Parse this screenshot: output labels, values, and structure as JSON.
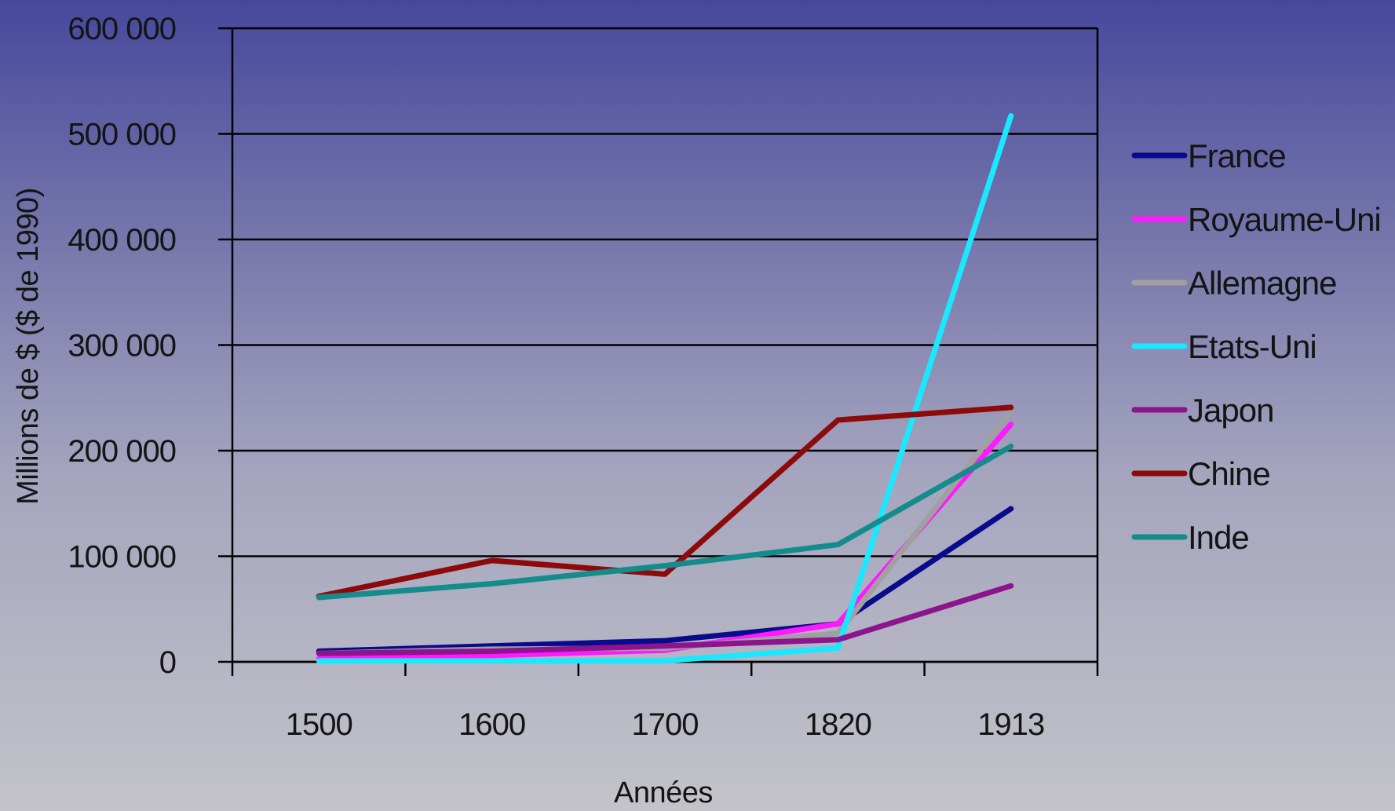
{
  "colors": {
    "France": "#0a0a8c",
    "Royaume-Uni": "#ff19ff",
    "Allemagne": "#a0a0a0",
    "Etats-Uni": "#19e8ff",
    "Japon": "#8c148c",
    "Chine": "#8c0a0a",
    "Inde": "#148c8c",
    "grid": "#000000"
  },
  "chart_data": {
    "type": "line",
    "title": "",
    "xlabel": "Années",
    "ylabel": "Millions de $ ($ de 1990)",
    "categories": [
      "1500",
      "1600",
      "1700",
      "1820",
      "1913"
    ],
    "ylim": [
      0,
      600000
    ],
    "yticks": [
      0,
      100000,
      200000,
      300000,
      400000,
      500000,
      600000
    ],
    "ytick_labels": [
      "0",
      "100 000",
      "200 000",
      "300 000",
      "400 000",
      "500 000",
      "600 000"
    ],
    "grid": true,
    "legend_position": "right",
    "series": [
      {
        "name": "France",
        "values": [
          10000,
          15000,
          20000,
          36000,
          145000
        ]
      },
      {
        "name": "Royaume-Uni",
        "values": [
          3000,
          6000,
          11000,
          36000,
          225000
        ]
      },
      {
        "name": "Allemagne",
        "values": [
          8000,
          12000,
          13000,
          27000,
          237000
        ]
      },
      {
        "name": "Etats-Uni",
        "values": [
          1000,
          1000,
          1000,
          13000,
          517000
        ]
      },
      {
        "name": "Japon",
        "values": [
          8000,
          10000,
          15000,
          21000,
          72000
        ]
      },
      {
        "name": "Chine",
        "values": [
          62000,
          96000,
          83000,
          229000,
          241000
        ]
      },
      {
        "name": "Inde",
        "values": [
          61000,
          74000,
          91000,
          111000,
          204000
        ]
      }
    ]
  }
}
